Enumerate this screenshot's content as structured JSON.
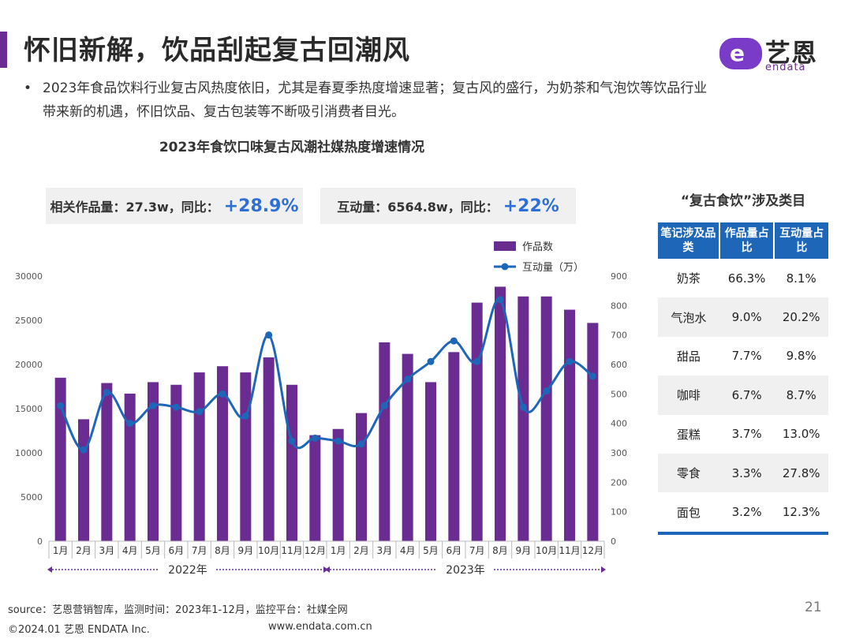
{
  "header": {
    "title": "怀旧新解，饮品刮起复古回潮风",
    "logo_cn": "艺恩",
    "logo_en": "endata",
    "logo_mark": "e"
  },
  "bullet": {
    "mark": "•",
    "text": "2023年食品饮料行业复古风热度依旧，尤其是春夏季热度增速显著；复古风的盛行，为奶茶和气泡饮等饮品行业带来新的机遇，怀旧饮品、复古包装等不断吸引消费者目光。"
  },
  "kpis": [
    {
      "label": "相关作品量：27.3w，同比：",
      "value": "+28.9%"
    },
    {
      "label": "互动量：6564.8w，同比：",
      "value": "+22%"
    }
  ],
  "chart_data": {
    "type": "bar",
    "title": "2023年食饮口味复古风潮社媒热度增速情况",
    "categories": [
      "1月",
      "2月",
      "3月",
      "4月",
      "5月",
      "6月",
      "7月",
      "8月",
      "9月",
      "10月",
      "11月",
      "12月",
      "1月",
      "2月",
      "3月",
      "4月",
      "5月",
      "6月",
      "7月",
      "8月",
      "9月",
      "10月",
      "11月",
      "12月"
    ],
    "year_groups": [
      {
        "label": "2022年",
        "start": 0,
        "end": 11
      },
      {
        "label": "2023年",
        "start": 12,
        "end": 23
      }
    ],
    "y_ticks": [
      "0",
      "5000",
      "10000",
      "15000",
      "20000",
      "25000",
      "30000"
    ],
    "y2_ticks": [
      "0",
      "100",
      "200",
      "300",
      "400",
      "500",
      "600",
      "700",
      "800",
      "900"
    ],
    "ylim": [
      0,
      30000
    ],
    "y2lim": [
      0,
      900
    ],
    "legend_position": "top-right",
    "series": [
      {
        "name": "作品数",
        "kind": "bar",
        "axis": "left",
        "color": "#6a2c91",
        "values": [
          18500,
          13800,
          17900,
          16700,
          18000,
          17700,
          19100,
          19800,
          19100,
          20800,
          17700,
          12000,
          12700,
          14500,
          22500,
          21200,
          18000,
          21400,
          27000,
          28800,
          27700,
          27700,
          26200,
          24700
        ]
      },
      {
        "name": "互动量（万）",
        "kind": "line",
        "axis": "right",
        "color": "#1e66b8",
        "values": [
          460,
          310,
          505,
          400,
          460,
          455,
          440,
          500,
          425,
          700,
          340,
          350,
          340,
          330,
          460,
          550,
          610,
          680,
          610,
          820,
          455,
          510,
          610,
          560
        ]
      }
    ]
  },
  "category_table": {
    "title": "“复古食饮”涉及类目",
    "headers": [
      "笔记涉及品类",
      "作品量占比",
      "互动量占比"
    ],
    "rows": [
      {
        "cat": "奶茶",
        "works": "66.3%",
        "inter": "8.1%"
      },
      {
        "cat": "气泡水",
        "works": "9.0%",
        "inter": "20.2%"
      },
      {
        "cat": "甜品",
        "works": "7.7%",
        "inter": "9.8%"
      },
      {
        "cat": "咖啡",
        "works": "6.7%",
        "inter": "8.7%"
      },
      {
        "cat": "蛋糕",
        "works": "3.7%",
        "inter": "13.0%"
      },
      {
        "cat": "零食",
        "works": "3.3%",
        "inter": "27.8%"
      },
      {
        "cat": "面包",
        "works": "3.2%",
        "inter": "12.3%"
      }
    ]
  },
  "footer": {
    "source": "source：艺恩营销智库，监测时间：2023年1-12月，监控平台：社媒全网",
    "page": "21",
    "copyright": "©2024.01  艺恩 ENDATA Inc.",
    "url": "www.endata.com.cn"
  }
}
